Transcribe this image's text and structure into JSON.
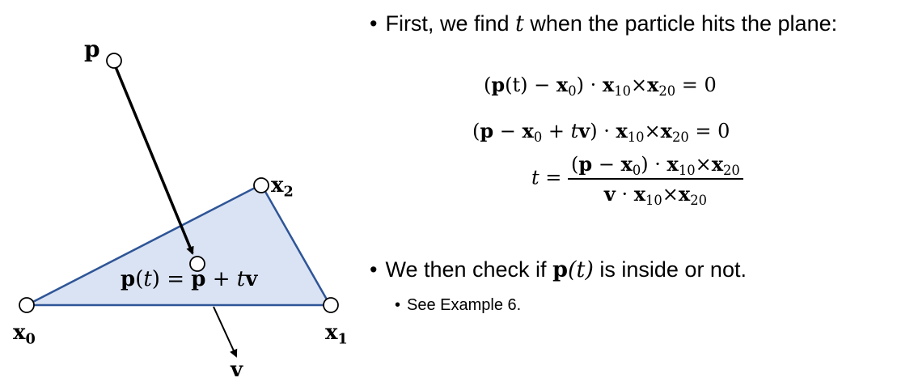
{
  "diagram": {
    "labels": {
      "p": "p",
      "x0_base": "x",
      "x0_sub": "0",
      "x1_base": "x",
      "x1_sub": "1",
      "x2_base": "x",
      "x2_sub": "2",
      "v": "v",
      "pt_eq": {
        "p": "p",
        "open": "(",
        "t": "t",
        "close": ")",
        "equals": " = ",
        "p2": "p",
        "plus": " + ",
        "t2": "t",
        "v": "v"
      }
    },
    "colors": {
      "triangle_fill": "#dae3f3",
      "triangle_stroke": "#2f5597",
      "arrow": "#000000"
    }
  },
  "text": {
    "bullet1": {
      "dot": "•",
      "pre": "First, we find ",
      "var": "t",
      "post": " when the particle hits the plane:"
    },
    "eq1": {
      "open": "(",
      "p": "p",
      "arg": "(t)",
      "minus": " − ",
      "x": "x",
      "sub0": "0",
      "close": ")",
      "dot": " · ",
      "x10": "x",
      "sub10": "10",
      "cross": "×",
      "x20": "x",
      "sub20": "20",
      "rhs": " = 0"
    },
    "eq2": {
      "open": "(",
      "p": "p",
      "minus": " − ",
      "x": "x",
      "sub0": "0",
      "plus": " + ",
      "t": "t",
      "v": "v",
      "close": ")",
      "dot": " · ",
      "x10": "x",
      "sub10": "10",
      "cross": "×",
      "x20": "x",
      "sub20": "20",
      "rhs": " = 0"
    },
    "eq3": {
      "lhs": "t",
      "equals": " = ",
      "num": {
        "open": "(",
        "p": "p",
        "minus": " − ",
        "x": "x",
        "sub0": "0",
        "close": ")",
        "dot": " · ",
        "x10": "x",
        "sub10": "10",
        "cross": "×",
        "x20": "x",
        "sub20": "20"
      },
      "den": {
        "v": "v",
        "dot": " · ",
        "x10": "x",
        "sub10": "10",
        "cross": "×",
        "x20": "x",
        "sub20": "20"
      }
    },
    "bullet2": {
      "dot": "•",
      "pre": "We then check if ",
      "p": "p",
      "arg": "(t)",
      "post": " is inside or not."
    },
    "sub_bullet": {
      "dot": "•",
      "text": "See Example 6."
    }
  }
}
